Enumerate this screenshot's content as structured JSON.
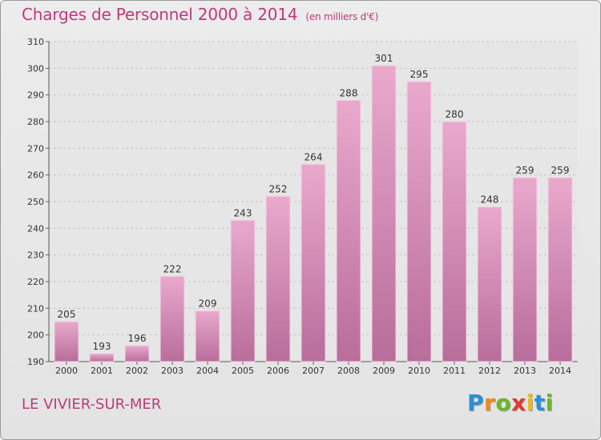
{
  "chart_data": {
    "type": "bar",
    "title": "Charges de Personnel 2000 à 2014",
    "unit_note": "(en milliers d'€)",
    "categories": [
      "2000",
      "2001",
      "2002",
      "2003",
      "2004",
      "2005",
      "2006",
      "2007",
      "2008",
      "2009",
      "2010",
      "2011",
      "2012",
      "2013",
      "2014"
    ],
    "values": [
      205,
      193,
      196,
      222,
      209,
      243,
      252,
      264,
      288,
      301,
      295,
      280,
      248,
      259,
      259
    ],
    "ylim": [
      190,
      310
    ],
    "yticks": [
      190,
      200,
      210,
      220,
      230,
      240,
      250,
      260,
      270,
      280,
      290,
      300,
      310
    ],
    "grid": true,
    "bar_color": "#d88bb4"
  },
  "place_name": "LE VIVIER-SUR-MER",
  "logo": {
    "letters": [
      "P",
      "r",
      "o",
      "x",
      "i",
      "t",
      "i"
    ],
    "colors": [
      "#2a8fd6",
      "#f08a1c",
      "#6cb52d",
      "#e03a2f",
      "#f0b81c",
      "#2a8fd6",
      "#6cb52d"
    ]
  }
}
